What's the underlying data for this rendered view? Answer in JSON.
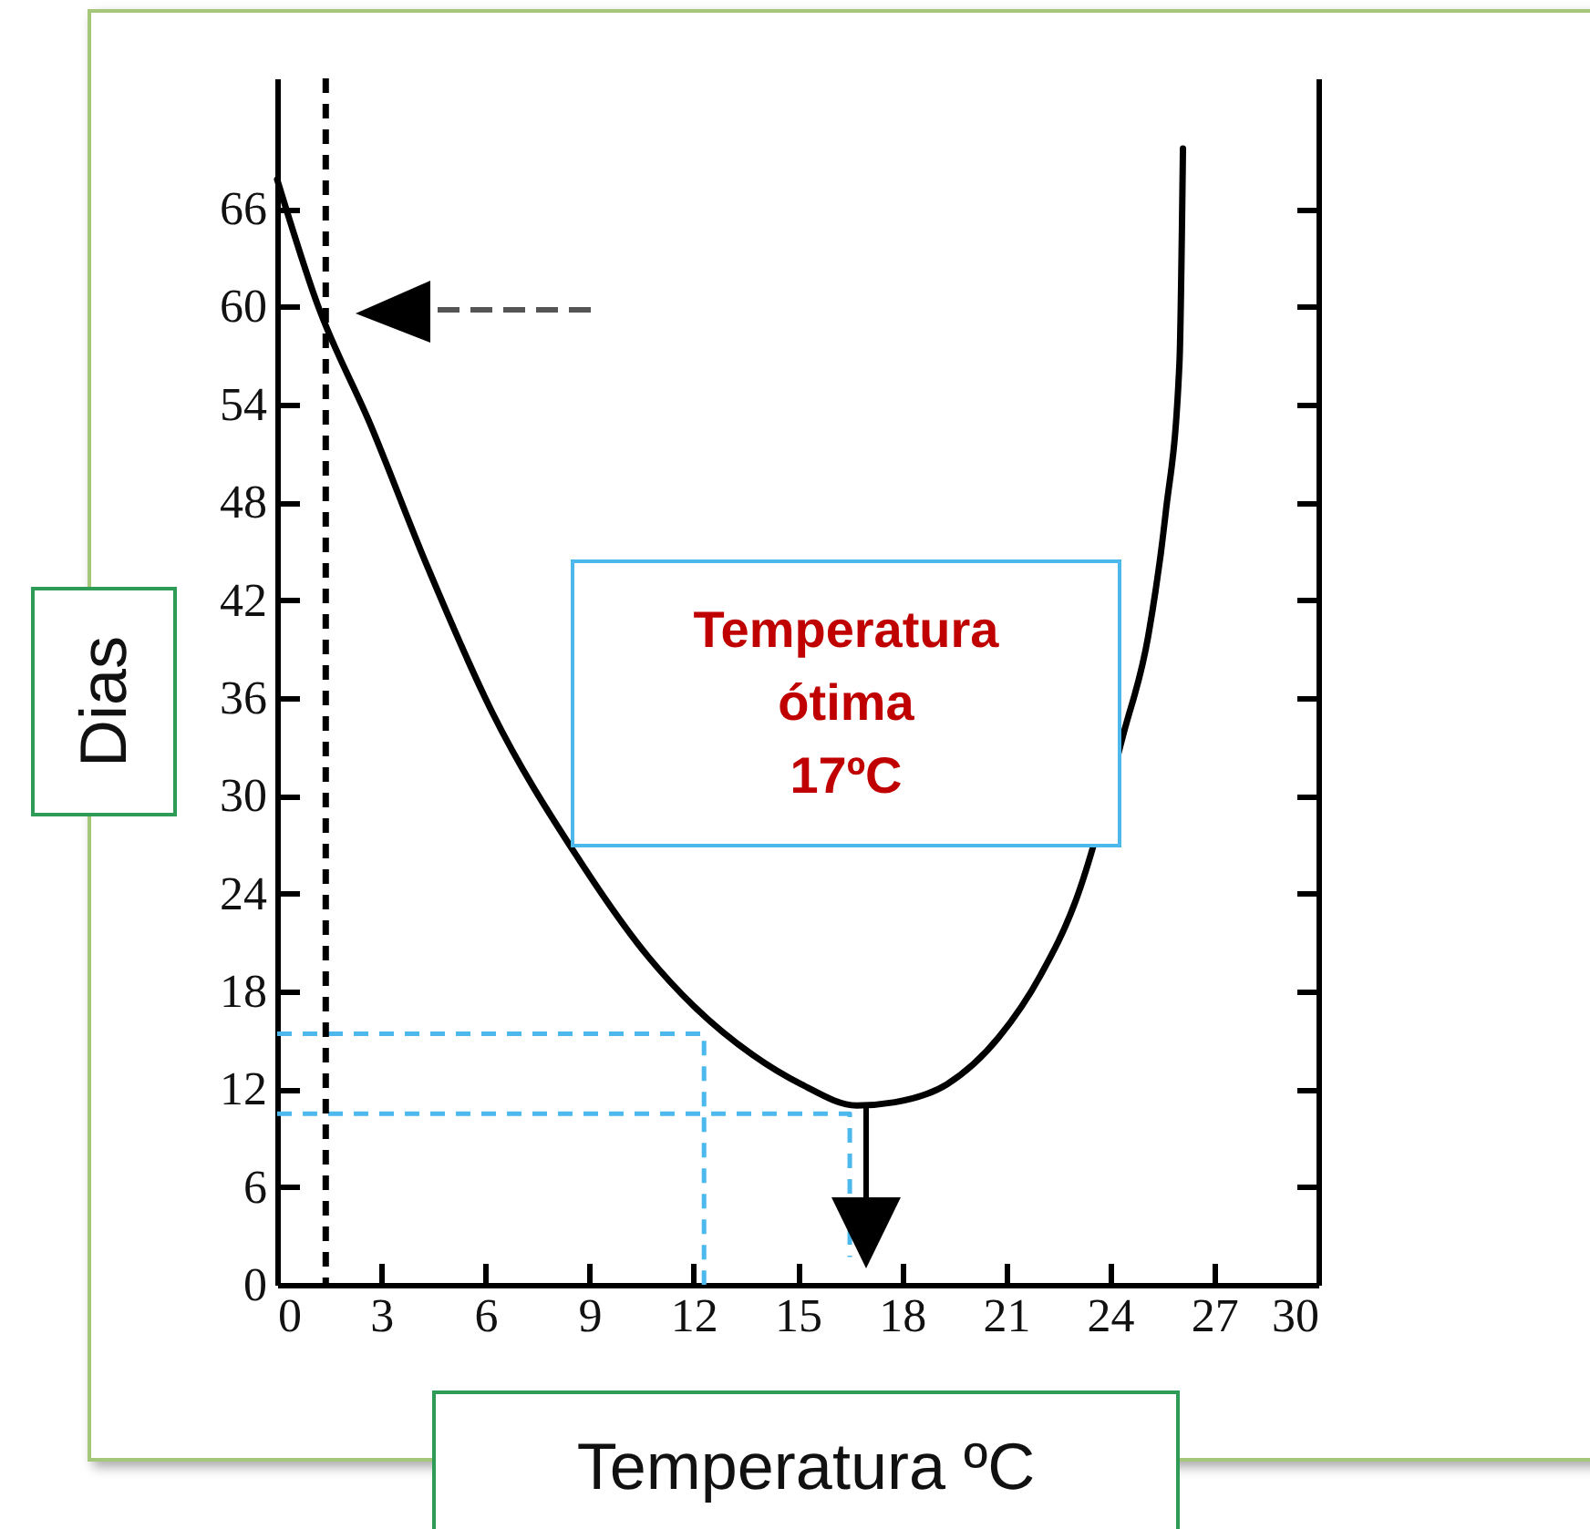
{
  "chart_data": {
    "type": "line",
    "xlabel": "Temperatura ºC",
    "ylabel": "Dias",
    "annotations": [
      "Temperatura\nótima\n17ºC"
    ],
    "x": [
      0,
      1.15,
      2.7,
      4.3,
      6.2,
      8.6,
      10.7,
      12.0,
      13.7,
      15.1,
      16.7,
      17.8,
      19.3,
      20.8,
      22.0,
      23.0,
      24.4,
      25.1,
      25.6,
      26.0,
      26.1
    ],
    "series": [
      {
        "color": "#000000",
        "values": [
          67.8,
          60.2,
          52.7,
          44.2,
          35.1,
          26.4,
          20.1,
          17.1,
          14.1,
          12.3,
          11.0,
          11.2,
          12.3,
          15.2,
          19.0,
          23.5,
          33.9,
          39.8,
          47.3,
          56.6,
          69.7
        ]
      },
      {
        "type": "line",
        "color": "#4cb8ec",
        "line_style": "dashed",
        "x": [
          0,
          12.3,
          12.3
        ],
        "values": [
          15.4,
          15.4,
          0
        ]
      },
      {
        "type": "line",
        "color": "#4cb8ec",
        "line_style": "dashed",
        "x": [
          0,
          16.5,
          16.5
        ],
        "values": [
          10.5,
          10.5,
          1.7
        ]
      }
    ],
    "xlim": [
      0,
      30
    ],
    "ylim": [
      0,
      74
    ],
    "xticks": [
      0,
      3,
      6,
      9,
      12,
      15,
      18,
      21,
      24,
      27,
      30
    ],
    "yticks": [
      0,
      6,
      12,
      18,
      24,
      30,
      36,
      42,
      48,
      54,
      60,
      66
    ],
    "ref_lines": [
      {
        "axis": "x",
        "value": 1.4,
        "color": "#000000",
        "line_style": "dashed"
      }
    ],
    "grid": false,
    "marker": "none",
    "line_style": "solid"
  }
}
